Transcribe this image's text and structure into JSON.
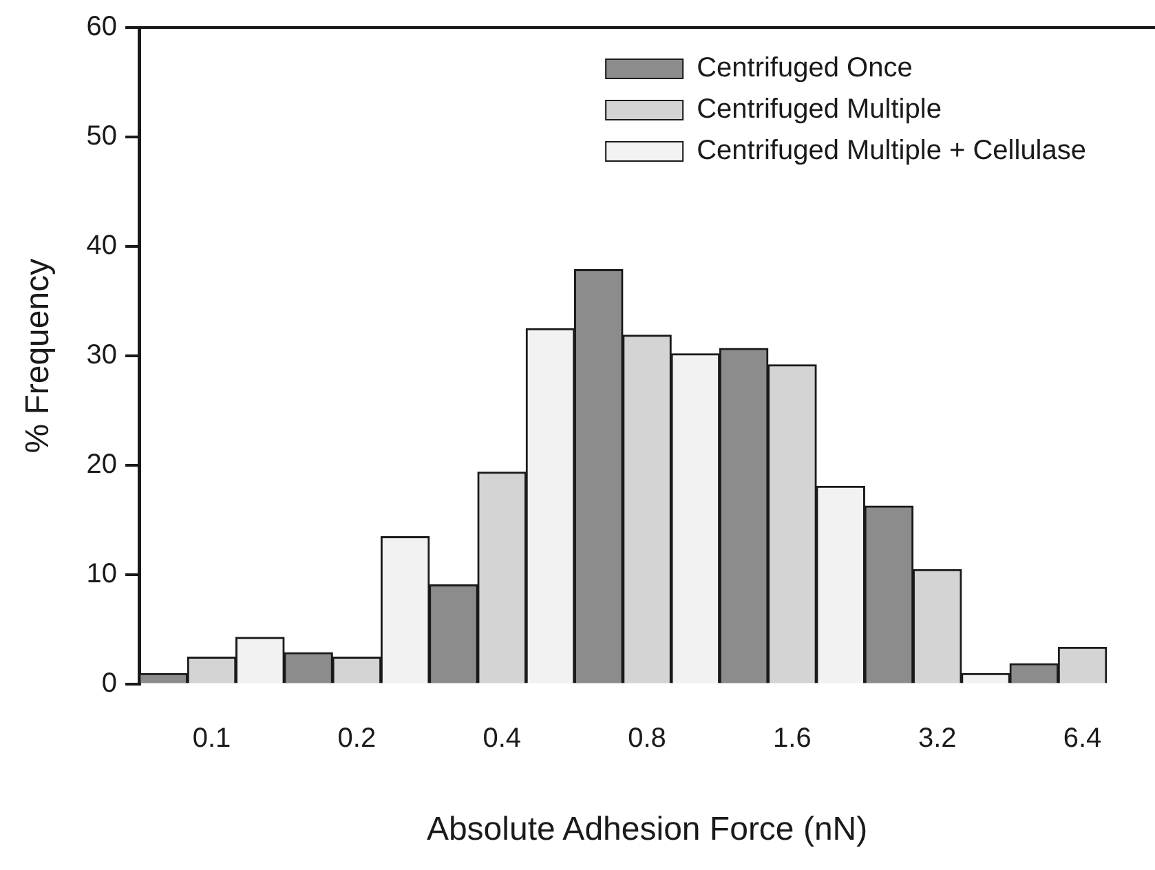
{
  "chart_data": {
    "type": "bar",
    "xlabel": "Absolute Adhesion Force (nN)",
    "ylabel": "% Frequency",
    "categories": [
      "0.1",
      "0.2",
      "0.4",
      "0.8",
      "1.6",
      "3.2",
      "6.4"
    ],
    "series": [
      {
        "name": "Centrifuged Once",
        "color": "#8c8c8c",
        "values": [
          1,
          2.9,
          9.1,
          37.9,
          30.7,
          16.3,
          1.9
        ]
      },
      {
        "name": "Centrifuged Multiple",
        "color": "#d4d4d4",
        "values": [
          2.5,
          2.5,
          19.4,
          31.9,
          29.2,
          10.5,
          3.4
        ]
      },
      {
        "name": "Centrifuged Multiple + Cellulase",
        "color": "#f2f2f2",
        "values": [
          4.3,
          13.5,
          32.5,
          30.2,
          18.1,
          1,
          null
        ]
      }
    ],
    "ylim": [
      0,
      60
    ],
    "yticks": [
      0,
      10,
      20,
      30,
      40,
      50,
      60
    ],
    "grid": false,
    "legend": "top right"
  }
}
